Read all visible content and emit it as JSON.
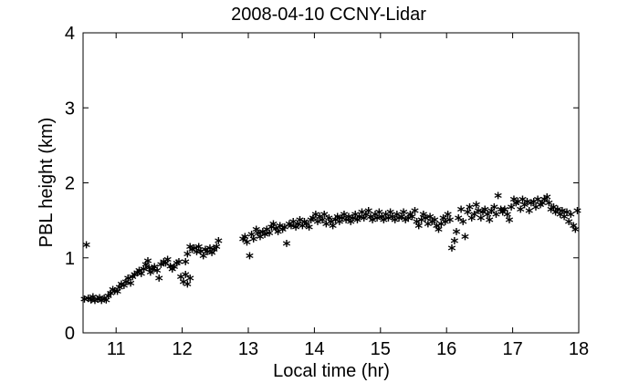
{
  "chart_data": {
    "type": "scatter",
    "title": "2008-04-10 CCNY-Lidar",
    "xlabel": "Local time (hr)",
    "ylabel": "PBL height (km)",
    "xlim": [
      10.5,
      18
    ],
    "ylim": [
      0,
      4
    ],
    "xticks": [
      11,
      12,
      13,
      14,
      15,
      16,
      17,
      18
    ],
    "yticks": [
      0,
      1,
      2,
      3,
      4
    ],
    "grid": false,
    "marker": "*",
    "series": [
      {
        "color": "#000000",
        "points": [
          [
            10.52,
            0.42
          ],
          [
            10.55,
            1.14
          ],
          [
            10.58,
            0.43
          ],
          [
            10.62,
            0.41
          ],
          [
            10.65,
            0.45
          ],
          [
            10.68,
            0.4
          ],
          [
            10.72,
            0.42
          ],
          [
            10.75,
            0.44
          ],
          [
            10.78,
            0.4
          ],
          [
            10.82,
            0.43
          ],
          [
            10.85,
            0.41
          ],
          [
            10.88,
            0.46
          ],
          [
            10.92,
            0.5
          ],
          [
            10.95,
            0.55
          ],
          [
            10.98,
            0.53
          ],
          [
            11.02,
            0.52
          ],
          [
            11.05,
            0.58
          ],
          [
            11.08,
            0.62
          ],
          [
            11.12,
            0.6
          ],
          [
            11.15,
            0.65
          ],
          [
            11.18,
            0.7
          ],
          [
            11.22,
            0.63
          ],
          [
            11.25,
            0.72
          ],
          [
            11.28,
            0.75
          ],
          [
            11.32,
            0.77
          ],
          [
            11.35,
            0.8
          ],
          [
            11.38,
            0.76
          ],
          [
            11.42,
            0.82
          ],
          [
            11.45,
            0.88
          ],
          [
            11.48,
            0.93
          ],
          [
            11.5,
            0.84
          ],
          [
            11.52,
            0.78
          ],
          [
            11.55,
            0.82
          ],
          [
            11.58,
            0.85
          ],
          [
            11.62,
            0.8
          ],
          [
            11.65,
            0.7
          ],
          [
            11.68,
            0.88
          ],
          [
            11.72,
            0.92
          ],
          [
            11.75,
            0.9
          ],
          [
            11.78,
            0.95
          ],
          [
            11.82,
            0.86
          ],
          [
            11.85,
            0.82
          ],
          [
            11.88,
            0.85
          ],
          [
            11.92,
            0.9
          ],
          [
            11.95,
            0.92
          ],
          [
            11.98,
            0.72
          ],
          [
            12.02,
            0.65
          ],
          [
            12.05,
            0.75
          ],
          [
            12.08,
            0.62
          ],
          [
            12.12,
            0.7
          ],
          [
            12.05,
            0.92
          ],
          [
            12.08,
            1.02
          ],
          [
            12.12,
            1.12
          ],
          [
            12.15,
            1.08
          ],
          [
            12.18,
            1.1
          ],
          [
            12.22,
            1.05
          ],
          [
            12.25,
            1.12
          ],
          [
            12.28,
            1.06
          ],
          [
            12.32,
            1.0
          ],
          [
            12.35,
            1.08
          ],
          [
            12.38,
            1.05
          ],
          [
            12.42,
            1.1
          ],
          [
            12.45,
            1.04
          ],
          [
            12.48,
            1.08
          ],
          [
            12.52,
            1.12
          ],
          [
            12.55,
            1.2
          ],
          [
            12.92,
            1.22
          ],
          [
            12.95,
            1.25
          ],
          [
            12.98,
            1.18
          ],
          [
            13.02,
            1.0
          ],
          [
            13.05,
            1.28
          ],
          [
            13.08,
            1.22
          ],
          [
            13.12,
            1.35
          ],
          [
            13.15,
            1.3
          ],
          [
            13.18,
            1.25
          ],
          [
            13.22,
            1.32
          ],
          [
            13.25,
            1.28
          ],
          [
            13.28,
            1.35
          ],
          [
            13.32,
            1.3
          ],
          [
            13.35,
            1.38
          ],
          [
            13.38,
            1.42
          ],
          [
            13.42,
            1.36
          ],
          [
            13.45,
            1.32
          ],
          [
            13.48,
            1.4
          ],
          [
            13.52,
            1.35
          ],
          [
            13.55,
            1.38
          ],
          [
            13.58,
            1.16
          ],
          [
            13.62,
            1.42
          ],
          [
            13.65,
            1.4
          ],
          [
            13.68,
            1.45
          ],
          [
            13.72,
            1.38
          ],
          [
            13.75,
            1.42
          ],
          [
            13.78,
            1.48
          ],
          [
            13.82,
            1.4
          ],
          [
            13.85,
            1.45
          ],
          [
            13.88,
            1.42
          ],
          [
            13.92,
            1.38
          ],
          [
            13.95,
            1.48
          ],
          [
            13.98,
            1.5
          ],
          [
            14.02,
            1.55
          ],
          [
            14.05,
            1.45
          ],
          [
            14.08,
            1.52
          ],
          [
            14.12,
            1.48
          ],
          [
            14.15,
            1.55
          ],
          [
            14.18,
            1.42
          ],
          [
            14.22,
            1.5
          ],
          [
            14.25,
            1.45
          ],
          [
            14.28,
            1.4
          ],
          [
            14.32,
            1.48
          ],
          [
            14.35,
            1.52
          ],
          [
            14.38,
            1.45
          ],
          [
            14.42,
            1.5
          ],
          [
            14.45,
            1.55
          ],
          [
            14.48,
            1.48
          ],
          [
            14.52,
            1.52
          ],
          [
            14.55,
            1.45
          ],
          [
            14.58,
            1.5
          ],
          [
            14.62,
            1.55
          ],
          [
            14.65,
            1.48
          ],
          [
            14.68,
            1.52
          ],
          [
            14.72,
            1.58
          ],
          [
            14.75,
            1.5
          ],
          [
            14.78,
            1.55
          ],
          [
            14.82,
            1.6
          ],
          [
            14.85,
            1.52
          ],
          [
            14.88,
            1.48
          ],
          [
            14.92,
            1.55
          ],
          [
            14.95,
            1.5
          ],
          [
            14.98,
            1.58
          ],
          [
            15.02,
            1.52
          ],
          [
            15.05,
            1.48
          ],
          [
            15.08,
            1.55
          ],
          [
            15.12,
            1.5
          ],
          [
            15.15,
            1.58
          ],
          [
            15.18,
            1.52
          ],
          [
            15.22,
            1.48
          ],
          [
            15.25,
            1.55
          ],
          [
            15.28,
            1.5
          ],
          [
            15.32,
            1.52
          ],
          [
            15.35,
            1.58
          ],
          [
            15.38,
            1.48
          ],
          [
            15.42,
            1.5
          ],
          [
            15.45,
            1.55
          ],
          [
            15.48,
            1.52
          ],
          [
            15.52,
            1.6
          ],
          [
            15.55,
            1.45
          ],
          [
            15.58,
            1.4
          ],
          [
            15.62,
            1.48
          ],
          [
            15.65,
            1.55
          ],
          [
            15.68,
            1.5
          ],
          [
            15.72,
            1.42
          ],
          [
            15.75,
            1.52
          ],
          [
            15.78,
            1.45
          ],
          [
            15.82,
            1.48
          ],
          [
            15.85,
            1.4
          ],
          [
            15.88,
            1.35
          ],
          [
            15.92,
            1.42
          ],
          [
            15.95,
            1.5
          ],
          [
            15.98,
            1.45
          ],
          [
            16.02,
            1.55
          ],
          [
            16.05,
            1.48
          ],
          [
            16.08,
            1.1
          ],
          [
            16.12,
            1.2
          ],
          [
            16.15,
            1.32
          ],
          [
            16.18,
            1.5
          ],
          [
            16.22,
            1.62
          ],
          [
            16.25,
            1.45
          ],
          [
            16.28,
            1.25
          ],
          [
            16.32,
            1.58
          ],
          [
            16.35,
            1.65
          ],
          [
            16.38,
            1.5
          ],
          [
            16.42,
            1.55
          ],
          [
            16.45,
            1.68
          ],
          [
            16.48,
            1.6
          ],
          [
            16.52,
            1.5
          ],
          [
            16.55,
            1.58
          ],
          [
            16.58,
            1.62
          ],
          [
            16.62,
            1.55
          ],
          [
            16.65,
            1.48
          ],
          [
            16.68,
            1.6
          ],
          [
            16.72,
            1.65
          ],
          [
            16.75,
            1.55
          ],
          [
            16.78,
            1.8
          ],
          [
            16.82,
            1.62
          ],
          [
            16.85,
            1.58
          ],
          [
            16.88,
            1.62
          ],
          [
            16.92,
            1.55
          ],
          [
            16.95,
            1.48
          ],
          [
            16.98,
            1.65
          ],
          [
            17.02,
            1.75
          ],
          [
            17.05,
            1.7
          ],
          [
            17.08,
            1.72
          ],
          [
            17.12,
            1.62
          ],
          [
            17.15,
            1.75
          ],
          [
            17.18,
            1.68
          ],
          [
            17.22,
            1.72
          ],
          [
            17.25,
            1.6
          ],
          [
            17.28,
            1.7
          ],
          [
            17.32,
            1.72
          ],
          [
            17.35,
            1.65
          ],
          [
            17.38,
            1.75
          ],
          [
            17.42,
            1.68
          ],
          [
            17.45,
            1.7
          ],
          [
            17.48,
            1.75
          ],
          [
            17.52,
            1.78
          ],
          [
            17.55,
            1.7
          ],
          [
            17.58,
            1.62
          ],
          [
            17.62,
            1.65
          ],
          [
            17.65,
            1.58
          ],
          [
            17.68,
            1.62
          ],
          [
            17.72,
            1.55
          ],
          [
            17.75,
            1.6
          ],
          [
            17.78,
            1.52
          ],
          [
            17.82,
            1.58
          ],
          [
            17.85,
            1.45
          ],
          [
            17.88,
            1.55
          ],
          [
            17.92,
            1.4
          ],
          [
            17.95,
            1.35
          ],
          [
            17.98,
            1.6
          ]
        ]
      }
    ]
  }
}
